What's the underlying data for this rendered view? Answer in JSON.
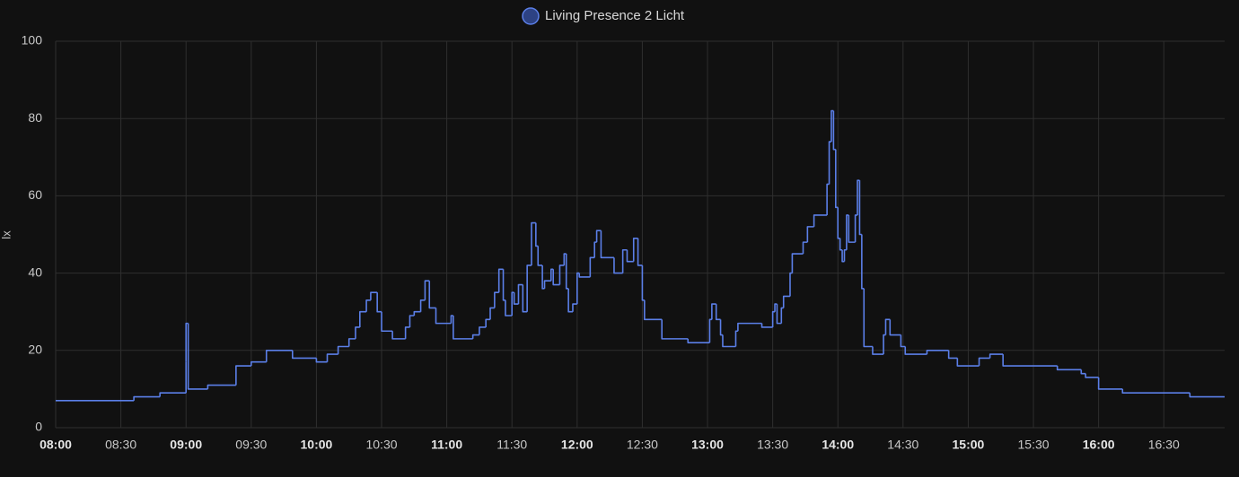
{
  "chart_data": {
    "type": "line",
    "step": true,
    "grid": true,
    "legend": "top",
    "ylabel": "lx",
    "ylim": [
      0,
      100
    ],
    "yticks": [
      0,
      20,
      40,
      60,
      80,
      100
    ],
    "xlim": [
      "08:00",
      "16:58"
    ],
    "xticks": [
      "08:00",
      "08:30",
      "09:00",
      "09:30",
      "10:00",
      "10:30",
      "11:00",
      "11:30",
      "12:00",
      "12:30",
      "13:00",
      "13:30",
      "14:00",
      "14:30",
      "15:00",
      "15:30",
      "16:00",
      "16:30"
    ],
    "x": [
      "08:00",
      "08:36",
      "08:48",
      "09:00",
      "09:00",
      "09:01",
      "09:10",
      "09:23",
      "09:30",
      "09:37",
      "09:49",
      "10:00",
      "10:05",
      "10:10",
      "10:15",
      "10:18",
      "10:20",
      "10:23",
      "10:25",
      "10:28",
      "10:30",
      "10:35",
      "10:41",
      "10:43",
      "10:45",
      "10:48",
      "10:50",
      "10:52",
      "10:55",
      "11:02",
      "11:03",
      "11:12",
      "11:15",
      "11:18",
      "11:20",
      "11:22",
      "11:24",
      "11:26",
      "11:27",
      "11:30",
      "11:31",
      "11:33",
      "11:35",
      "11:37",
      "11:39",
      "11:41",
      "11:42",
      "11:44",
      "11:45",
      "11:48",
      "11:49",
      "11:52",
      "11:54",
      "11:55",
      "11:56",
      "11:58",
      "12:00",
      "12:01",
      "12:06",
      "12:08",
      "12:09",
      "12:11",
      "12:17",
      "12:21",
      "12:23",
      "12:26",
      "12:28",
      "12:30",
      "12:31",
      "12:39",
      "12:51",
      "13:01",
      "13:02",
      "13:04",
      "13:06",
      "13:07",
      "13:13",
      "13:14",
      "13:25",
      "13:30",
      "13:31",
      "13:32",
      "13:34",
      "13:35",
      "13:38",
      "13:39",
      "13:44",
      "13:46",
      "13:49",
      "13:55",
      "13:56",
      "13:57",
      "13:58",
      "13:59",
      "14:00",
      "14:01",
      "14:02",
      "14:03",
      "14:04",
      "14:05",
      "14:08",
      "14:09",
      "14:10",
      "14:11",
      "14:12",
      "14:16",
      "14:21",
      "14:22",
      "14:24",
      "14:29",
      "14:31",
      "14:41",
      "14:51",
      "14:55",
      "15:05",
      "15:10",
      "15:16",
      "15:41",
      "15:52",
      "15:54",
      "16:00",
      "16:11",
      "16:42",
      "16:58"
    ],
    "series": [
      {
        "name": "Living Presence 2 Licht",
        "color": "#5b7fe8",
        "values": [
          7,
          8,
          9,
          17,
          27,
          10,
          11,
          16,
          17,
          20,
          18,
          17,
          19,
          21,
          23,
          26,
          30,
          33,
          35,
          30,
          25,
          23,
          26,
          29,
          30,
          33,
          38,
          31,
          27,
          29,
          23,
          24,
          26,
          28,
          31,
          35,
          41,
          33,
          29,
          35,
          32,
          37,
          30,
          42,
          53,
          47,
          42,
          36,
          38,
          41,
          37,
          42,
          45,
          36,
          30,
          32,
          40,
          39,
          44,
          48,
          51,
          44,
          40,
          46,
          43,
          49,
          42,
          33,
          28,
          23,
          22,
          28,
          32,
          28,
          24,
          21,
          25,
          27,
          26,
          30,
          32,
          27,
          31,
          34,
          40,
          45,
          48,
          52,
          55,
          63,
          74,
          82,
          72,
          57,
          49,
          46,
          43,
          46,
          55,
          48,
          55,
          64,
          50,
          36,
          21,
          19,
          24,
          28,
          24,
          21,
          19,
          20,
          18,
          16,
          18,
          19,
          16,
          15,
          14,
          13,
          10,
          9,
          8,
          8
        ]
      }
    ]
  }
}
